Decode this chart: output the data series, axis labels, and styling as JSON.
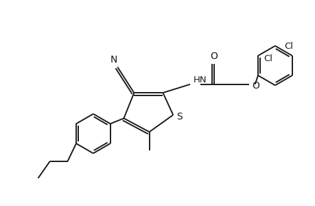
{
  "bg_color": "#ffffff",
  "line_color": "#1a1a1a",
  "line_width": 1.4,
  "figsize": [
    4.6,
    3.0
  ],
  "dpi": 100,
  "xlim": [
    0,
    9.2
  ],
  "ylim": [
    0,
    6.0
  ]
}
